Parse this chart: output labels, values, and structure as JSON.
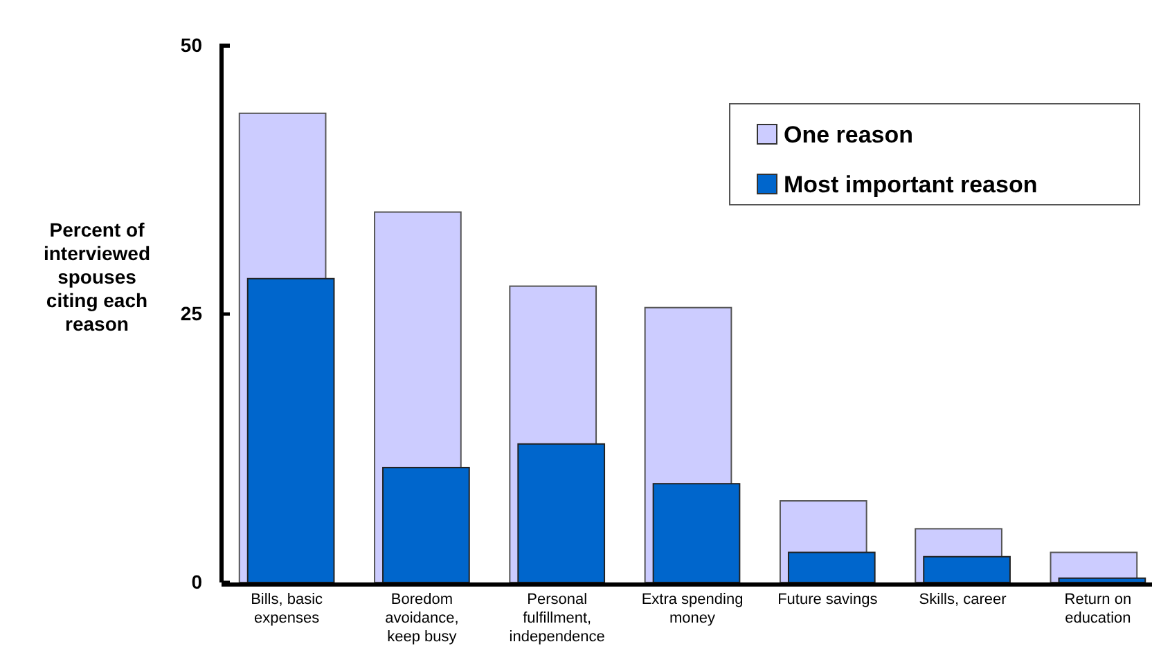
{
  "chart_data": {
    "type": "bar",
    "ylabel": "Percent of interviewed spouses citing each reason",
    "categories": [
      "Bills, basic expenses",
      "Boredom avoidance, keep busy",
      "Personal fulfillment, independence",
      "Extra spending money",
      "Future savings",
      "Skills, career",
      "Return on education"
    ],
    "series": [
      {
        "name": "One reason",
        "color": "#ccccff",
        "values": [
          43.7,
          34.5,
          27.6,
          25.6,
          7.6,
          5.0,
          2.8
        ]
      },
      {
        "name": "Most important reason",
        "color": "#0066cc",
        "values": [
          28.3,
          10.7,
          12.9,
          9.2,
          2.8,
          2.4,
          0.4
        ]
      }
    ],
    "ylim": [
      0,
      50
    ],
    "yticks": [
      0,
      25,
      50
    ],
    "legend": "top right",
    "grid": false
  }
}
